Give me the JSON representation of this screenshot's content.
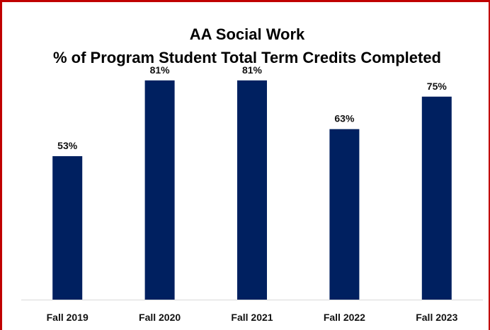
{
  "chart_data": {
    "type": "bar",
    "title": "AA Social Work",
    "subtitle": "% of Program Student Total Term Credits Completed",
    "categories": [
      "Fall 2019",
      "Fall 2020",
      "Fall 2021",
      "Fall 2022",
      "Fall 2023"
    ],
    "values": [
      53,
      81,
      81,
      63,
      75
    ],
    "value_labels": [
      "53%",
      "81%",
      "81%",
      "63%",
      "75%"
    ],
    "ylim": [
      0,
      100
    ],
    "grid": false,
    "legend": "none",
    "bar_color": "#002060",
    "frame_color": "#c00000"
  }
}
